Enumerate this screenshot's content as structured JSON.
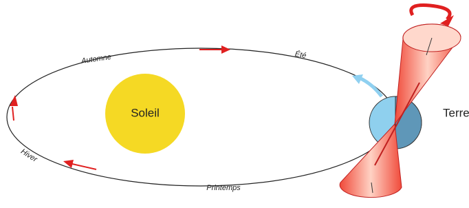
{
  "nodes": [
    {
      "label": "Soleil"
    },
    {
      "label": "Terre"
    }
  ],
  "seasons": [
    "Automne",
    "Été",
    "Hiver",
    "Printemps"
  ]
}
